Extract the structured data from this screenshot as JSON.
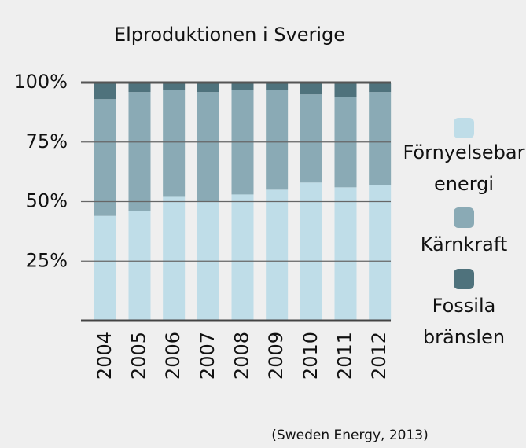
{
  "chart_data": {
    "type": "stacked_bar",
    "title": "Elproduktionen i Sverige",
    "categories": [
      "2004",
      "2005",
      "2006",
      "2007",
      "2008",
      "2009",
      "2010",
      "2011",
      "2012"
    ],
    "series": [
      {
        "name": "Förnyelsebar energi",
        "color": "#bfdde8",
        "values": [
          44,
          46,
          52,
          50,
          53,
          55,
          58,
          56,
          57
        ]
      },
      {
        "name": "Kärnkraft",
        "color": "#8aaab5",
        "values": [
          49,
          50,
          45,
          46,
          44,
          42,
          37,
          38,
          39
        ]
      },
      {
        "name": "Fossila bränslen",
        "color": "#4f727c",
        "values": [
          7,
          4,
          3,
          4,
          3,
          3,
          5,
          6,
          4
        ]
      }
    ],
    "ylim": [
      0,
      100
    ],
    "yticks": [
      {
        "value": 25,
        "label": "25%"
      },
      {
        "value": 50,
        "label": "50%"
      },
      {
        "value": 75,
        "label": "75%"
      },
      {
        "value": 100,
        "label": "100%"
      }
    ],
    "grid": true,
    "legend": "right",
    "source": "(Sweden Energy, 2013)"
  }
}
